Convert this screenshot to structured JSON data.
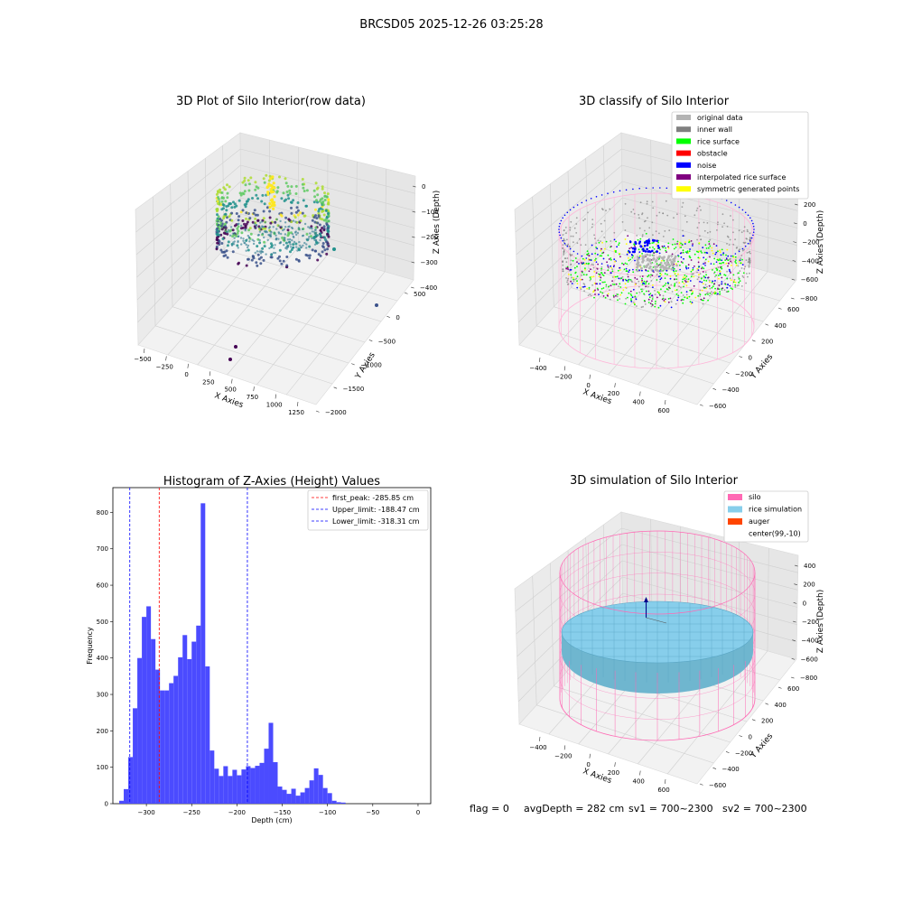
{
  "suptitle": "BRCSD05 2025-12-26 03:25:28",
  "footer": {
    "flag": "flag = 0",
    "avgDepth": "avgDepth = 282 cm",
    "sv1": "sv1 = 700~2300",
    "sv2": "sv2 = 700~2300"
  },
  "chart_data": [
    {
      "type": "scatter3d",
      "title": "3D Plot of Silo Interior(row data)",
      "xlabel": "X Axies",
      "ylabel": "Y Axies",
      "zlabel": "Z Axies (Depth)",
      "x_ticks": [
        "−500",
        "−250",
        "0",
        "250",
        "500",
        "750",
        "1000",
        "1250"
      ],
      "y_ticks": [
        "500",
        "0",
        "−500",
        "−1000",
        "−1500",
        "−2000"
      ],
      "z_ticks": [
        "0",
        "−100",
        "−200",
        "−300",
        "−400"
      ],
      "colormap": "viridis"
    },
    {
      "type": "scatter3d",
      "title": "3D classify of Silo Interior",
      "xlabel": "X Axies",
      "ylabel": "Y Axies",
      "zlabel": "Z Axies (Depth)",
      "x_ticks": [
        "−400",
        "−200",
        "0",
        "200",
        "400",
        "600"
      ],
      "y_ticks": [
        "600",
        "400",
        "200",
        "0",
        "−200",
        "−400",
        "−600"
      ],
      "z_ticks": [
        "200",
        "0",
        "−200",
        "−400",
        "−600",
        "−800"
      ],
      "legend": [
        {
          "label": "original data",
          "color": "#b3b3b3"
        },
        {
          "label": "inner wall",
          "color": "#808080"
        },
        {
          "label": "rice surface",
          "color": "#00ff00"
        },
        {
          "label": "obstacle",
          "color": "#ff0000"
        },
        {
          "label": "noise",
          "color": "#0000ff"
        },
        {
          "label": "interpolated rice surface",
          "color": "#800080"
        },
        {
          "label": "symmetric generated points",
          "color": "#ffff00"
        }
      ],
      "legend_position": "top-right"
    },
    {
      "type": "bar",
      "title": "Histogram of Z-Axies (Height) Values",
      "xlabel": "Depth (cm)",
      "ylabel": "Frequency",
      "bin_width": 5,
      "bin_start": -330,
      "values": [
        8,
        40,
        128,
        262,
        400,
        513,
        542,
        452,
        368,
        311,
        311,
        331,
        351,
        402,
        463,
        397,
        445,
        489,
        825,
        377,
        146,
        96,
        76,
        103,
        76,
        93,
        78,
        94,
        103,
        98,
        104,
        112,
        151,
        222,
        114,
        47,
        38,
        27,
        41,
        22,
        31,
        43,
        64,
        97,
        79,
        43,
        29,
        8,
        4,
        3,
        0
      ],
      "xlim": [
        -337,
        14
      ],
      "ylim": [
        0,
        868
      ],
      "x_ticks": [
        -300,
        -250,
        -200,
        -150,
        -100,
        -50,
        0
      ],
      "x_tick_labels": [
        "−300",
        "−250",
        "−200",
        "−150",
        "−100",
        "−50",
        "0"
      ],
      "y_ticks": [
        0,
        100,
        200,
        300,
        400,
        500,
        600,
        700,
        800
      ],
      "color": "#4b4bff",
      "lines": [
        {
          "label": "first_peak: -285.85 cm",
          "x": -285.85,
          "color": "#ff0000"
        },
        {
          "label": "Upper_limit: -188.47 cm",
          "x": -188.47,
          "color": "#0000ff"
        },
        {
          "label": "Lower_limit: -318.31 cm",
          "x": -318.31,
          "color": "#0000ff"
        }
      ],
      "legend_position": "top-right"
    },
    {
      "type": "surface3d",
      "title": "3D simulation of Silo Interior",
      "xlabel": "X Axies",
      "ylabel": "Y Axies",
      "zlabel": "Z Axies (Depth)",
      "x_ticks": [
        "−400",
        "−200",
        "0",
        "200",
        "400",
        "600"
      ],
      "y_ticks": [
        "600",
        "400",
        "200",
        "0",
        "−200",
        "−400",
        "−600"
      ],
      "z_ticks": [
        "400",
        "200",
        "0",
        "−200",
        "−400",
        "−600",
        "−800"
      ],
      "legend": [
        {
          "label": "silo",
          "color": "#ff69b4"
        },
        {
          "label": "rice simulation",
          "color": "#87ceeb"
        },
        {
          "label": "auger",
          "color": "#ff4500"
        },
        {
          "label": "center(99,-10)",
          "color": ""
        }
      ],
      "legend_position": "top-right"
    }
  ]
}
